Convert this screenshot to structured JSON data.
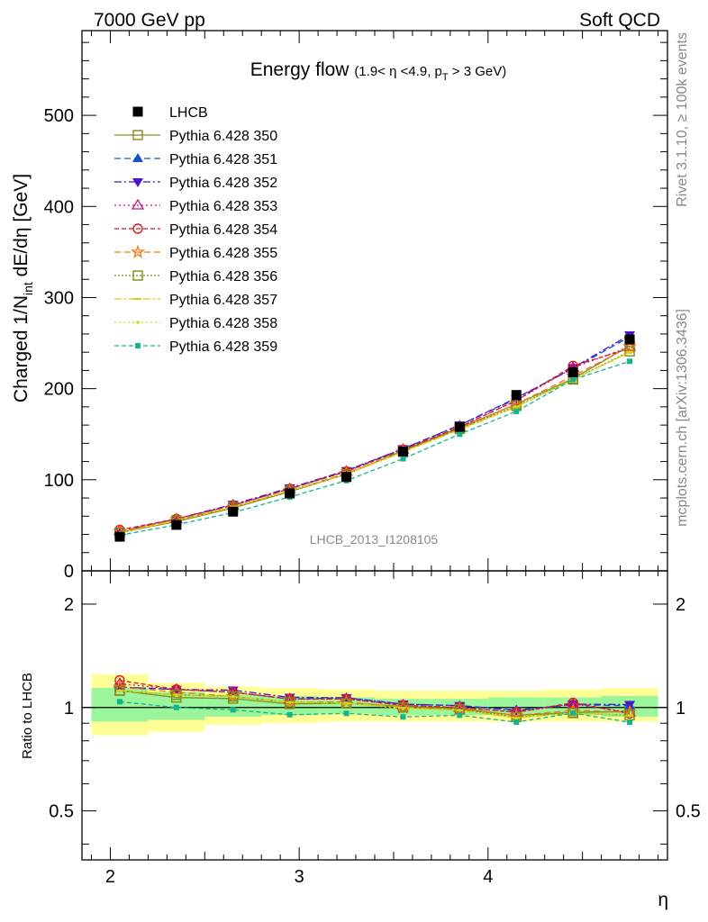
{
  "header": {
    "left": "7000 GeV pp",
    "right": "Soft QCD"
  },
  "side_text": {
    "rivet": "Rivet 3.1.10, ≥ 100k events",
    "mcplots": "mcplots.cern.ch [arXiv:1306.3436]"
  },
  "analysis_id": "LHCB_2013_I1208105",
  "chart_data": {
    "type": "line",
    "title": "Energy flow",
    "title_detail": "(1.9< η <4.9, p_T > 3 GeV)",
    "xlabel": "η",
    "ylabel": "Charged 1/N_int dE/dη [GeV]",
    "ratio_ylabel": "Ratio to LHCB",
    "xlim": [
      1.85,
      4.95
    ],
    "ylim": [
      0,
      593
    ],
    "ratio_ylim": [
      0.36,
      2.5
    ],
    "ratio_log": true,
    "x_ticks": [
      "2",
      "3",
      "4"
    ],
    "y_ticks": [
      "0",
      "100",
      "200",
      "300",
      "400",
      "500"
    ],
    "ratio_ticks": [
      "0.5",
      "1",
      "2"
    ],
    "x": [
      2.05,
      2.35,
      2.65,
      2.95,
      3.25,
      3.55,
      3.85,
      4.15,
      4.45,
      4.75
    ],
    "bin_edges": [
      1.9,
      2.2,
      2.5,
      2.8,
      3.1,
      3.4,
      3.7,
      4.0,
      4.3,
      4.6,
      4.9
    ],
    "data": {
      "name": "LHCB",
      "values": [
        37.5,
        50.5,
        65,
        85,
        103,
        131,
        158,
        193,
        218,
        254
      ],
      "band_inner": [
        [
          0.91,
          1.14
        ],
        [
          0.92,
          1.11
        ],
        [
          0.94,
          1.09
        ],
        [
          0.95,
          1.08
        ],
        [
          0.96,
          1.07
        ],
        [
          0.95,
          1.06
        ],
        [
          0.95,
          1.06
        ],
        [
          0.95,
          1.07
        ],
        [
          0.95,
          1.07
        ],
        [
          0.94,
          1.08
        ]
      ],
      "band_outer": [
        [
          0.83,
          1.25
        ],
        [
          0.85,
          1.18
        ],
        [
          0.89,
          1.15
        ],
        [
          0.9,
          1.14
        ],
        [
          0.91,
          1.13
        ],
        [
          0.91,
          1.12
        ],
        [
          0.91,
          1.12
        ],
        [
          0.91,
          1.12
        ],
        [
          0.91,
          1.13
        ],
        [
          0.91,
          1.14
        ]
      ]
    },
    "series": [
      {
        "name": "Pythia 6.428 350",
        "color": "#8a8a1e",
        "marker": "square-open",
        "dash": "",
        "values": [
          42,
          54,
          69,
          87,
          106,
          132,
          157,
          183,
          211,
          247
        ]
      },
      {
        "name": "Pythia 6.428 351",
        "color": "#1750c8",
        "marker": "triangle-up",
        "dash": "7,4",
        "values": [
          43,
          57,
          72,
          90,
          110,
          134,
          160,
          190,
          222,
          257
        ]
      },
      {
        "name": "Pythia 6.428 352",
        "color": "#4b14c8",
        "marker": "triangle-down",
        "dash": "8,3,2,3",
        "values": [
          43,
          57,
          73,
          91,
          110,
          134,
          160,
          189,
          223,
          259
        ]
      },
      {
        "name": "Pythia 6.428 353",
        "color": "#c8147d",
        "marker": "triangle-open",
        "dash": "2,3",
        "values": [
          44,
          57,
          72,
          90,
          109,
          133,
          158,
          187,
          223,
          246
        ]
      },
      {
        "name": "Pythia 6.428 354",
        "color": "#e0151e",
        "marker": "circle-open",
        "dash": "5,3",
        "values": [
          45,
          57,
          72,
          90,
          109,
          133,
          158,
          187,
          225,
          244
        ]
      },
      {
        "name": "Pythia 6.428 355",
        "color": "#f07814",
        "marker": "star-open",
        "dash": "7,4",
        "values": [
          43,
          56,
          70,
          88,
          107,
          131,
          156,
          183,
          214,
          246
        ]
      },
      {
        "name": "Pythia 6.428 356",
        "color": "#7d8c14",
        "marker": "square-open",
        "dash": "2,2",
        "values": [
          42,
          55,
          70,
          88,
          106,
          131,
          156,
          181,
          210,
          241
        ]
      },
      {
        "name": "Pythia 6.428 357",
        "color": "#dcc814",
        "marker": "dash",
        "dash": "8,3,2,3",
        "values": [
          42,
          55,
          70,
          88,
          106,
          131,
          155,
          180,
          210,
          240
        ]
      },
      {
        "name": "Pythia 6.428 358",
        "color": "#bee114",
        "marker": "dot",
        "dash": "2,3",
        "values": [
          42,
          55,
          70,
          88,
          106,
          130,
          155,
          180,
          210,
          240
        ]
      },
      {
        "name": "Pythia 6.428 359",
        "color": "#14b48c",
        "marker": "square-filled",
        "dash": "5,3",
        "values": [
          39,
          50.5,
          64,
          81,
          99,
          123,
          150,
          175,
          210,
          230
        ]
      }
    ]
  }
}
